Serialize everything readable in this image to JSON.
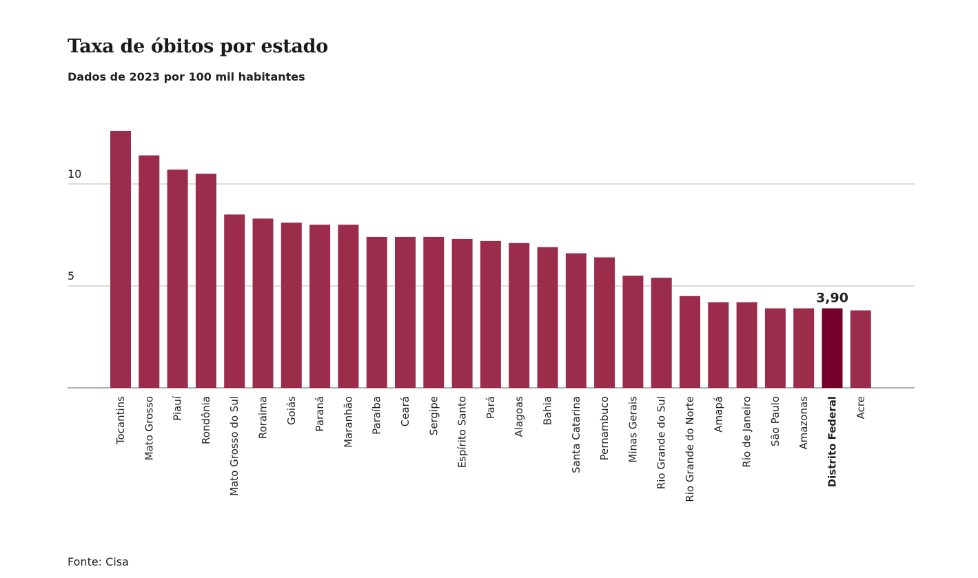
{
  "title": "Taxa de óbitos por estado",
  "subtitle": "Dados de 2023 por 100 mil habitantes",
  "source": "Fonte: Cisa",
  "colors": {
    "bar": "#9b2c4b",
    "highlight_bar": "#74002b",
    "grid": "#c8c8c8",
    "axis": "#999999",
    "text": "#222222"
  },
  "chart_data": {
    "type": "bar",
    "categories": [
      "Tocantins",
      "Mato Grosso",
      "Piauí",
      "Rondônia",
      "Mato Grosso do Sul",
      "Roraima",
      "Goiás",
      "Paraná",
      "Maranhão",
      "Paraíba",
      "Ceará",
      "Sergipe",
      "Espírito Santo",
      "Pará",
      "Alagoas",
      "Bahia",
      "Santa Catarina",
      "Pernambuco",
      "Minas Gerais",
      "Rio Grande do Sul",
      "Rio Grande do Norte",
      "Amapá",
      "Rio de Janeiro",
      "São Paulo",
      "Amazonas",
      "Distrito Federal",
      "Acre"
    ],
    "values": [
      12.6,
      11.4,
      10.7,
      10.5,
      8.5,
      8.3,
      8.1,
      8.0,
      8.0,
      7.4,
      7.4,
      7.4,
      7.3,
      7.2,
      7.1,
      6.9,
      6.6,
      6.4,
      5.5,
      5.4,
      4.5,
      4.2,
      4.2,
      3.9,
      3.9,
      3.9,
      3.8
    ],
    "highlight": {
      "category": "Distrito Federal",
      "label": "3,90"
    },
    "yticks": [
      5,
      10
    ],
    "ylim": [
      0,
      12.6
    ],
    "grid": true,
    "xlabel": "",
    "ylabel": ""
  }
}
